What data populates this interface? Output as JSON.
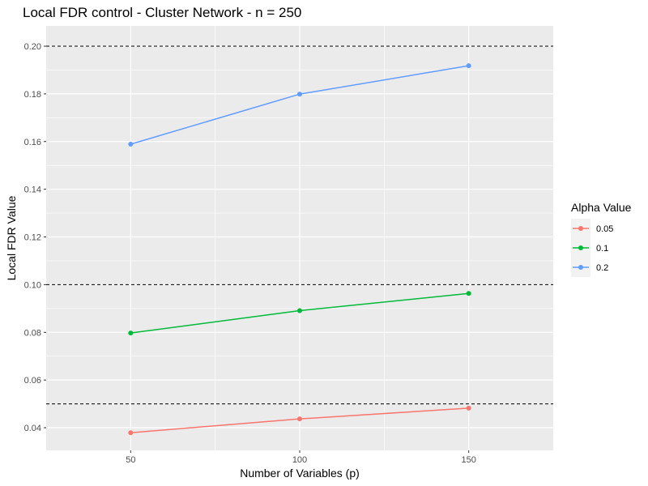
{
  "chart_data": {
    "type": "line",
    "title": "Local FDR control - Cluster Network - n = 250",
    "xlabel": "Number of Variables (p)",
    "ylabel": "Local FDR Value",
    "x": [
      50,
      100,
      150
    ],
    "x_ticks": [
      "50",
      "100",
      "150"
    ],
    "y_ticks": [
      "0.04",
      "0.06",
      "0.08",
      "0.10",
      "0.12",
      "0.14",
      "0.16",
      "0.18",
      "0.20"
    ],
    "xlim": [
      25,
      175
    ],
    "ylim": [
      0.0305,
      0.2085
    ],
    "grid": true,
    "legend_title": "Alpha Value",
    "legend_position": "right",
    "series": [
      {
        "name": "0.05",
        "color": "#F8766D",
        "values": [
          0.0379,
          0.0437,
          0.0482
        ]
      },
      {
        "name": "0.1",
        "color": "#00BA38",
        "values": [
          0.0797,
          0.0891,
          0.0963
        ]
      },
      {
        "name": "0.2",
        "color": "#619CFF",
        "values": [
          0.1589,
          0.1799,
          0.1918
        ]
      }
    ],
    "reference_lines": [
      0.05,
      0.1,
      0.2
    ],
    "colors": {
      "panel": "#EBEBEB",
      "grid": "#FFFFFF",
      "text": "#4d4d4d"
    }
  }
}
